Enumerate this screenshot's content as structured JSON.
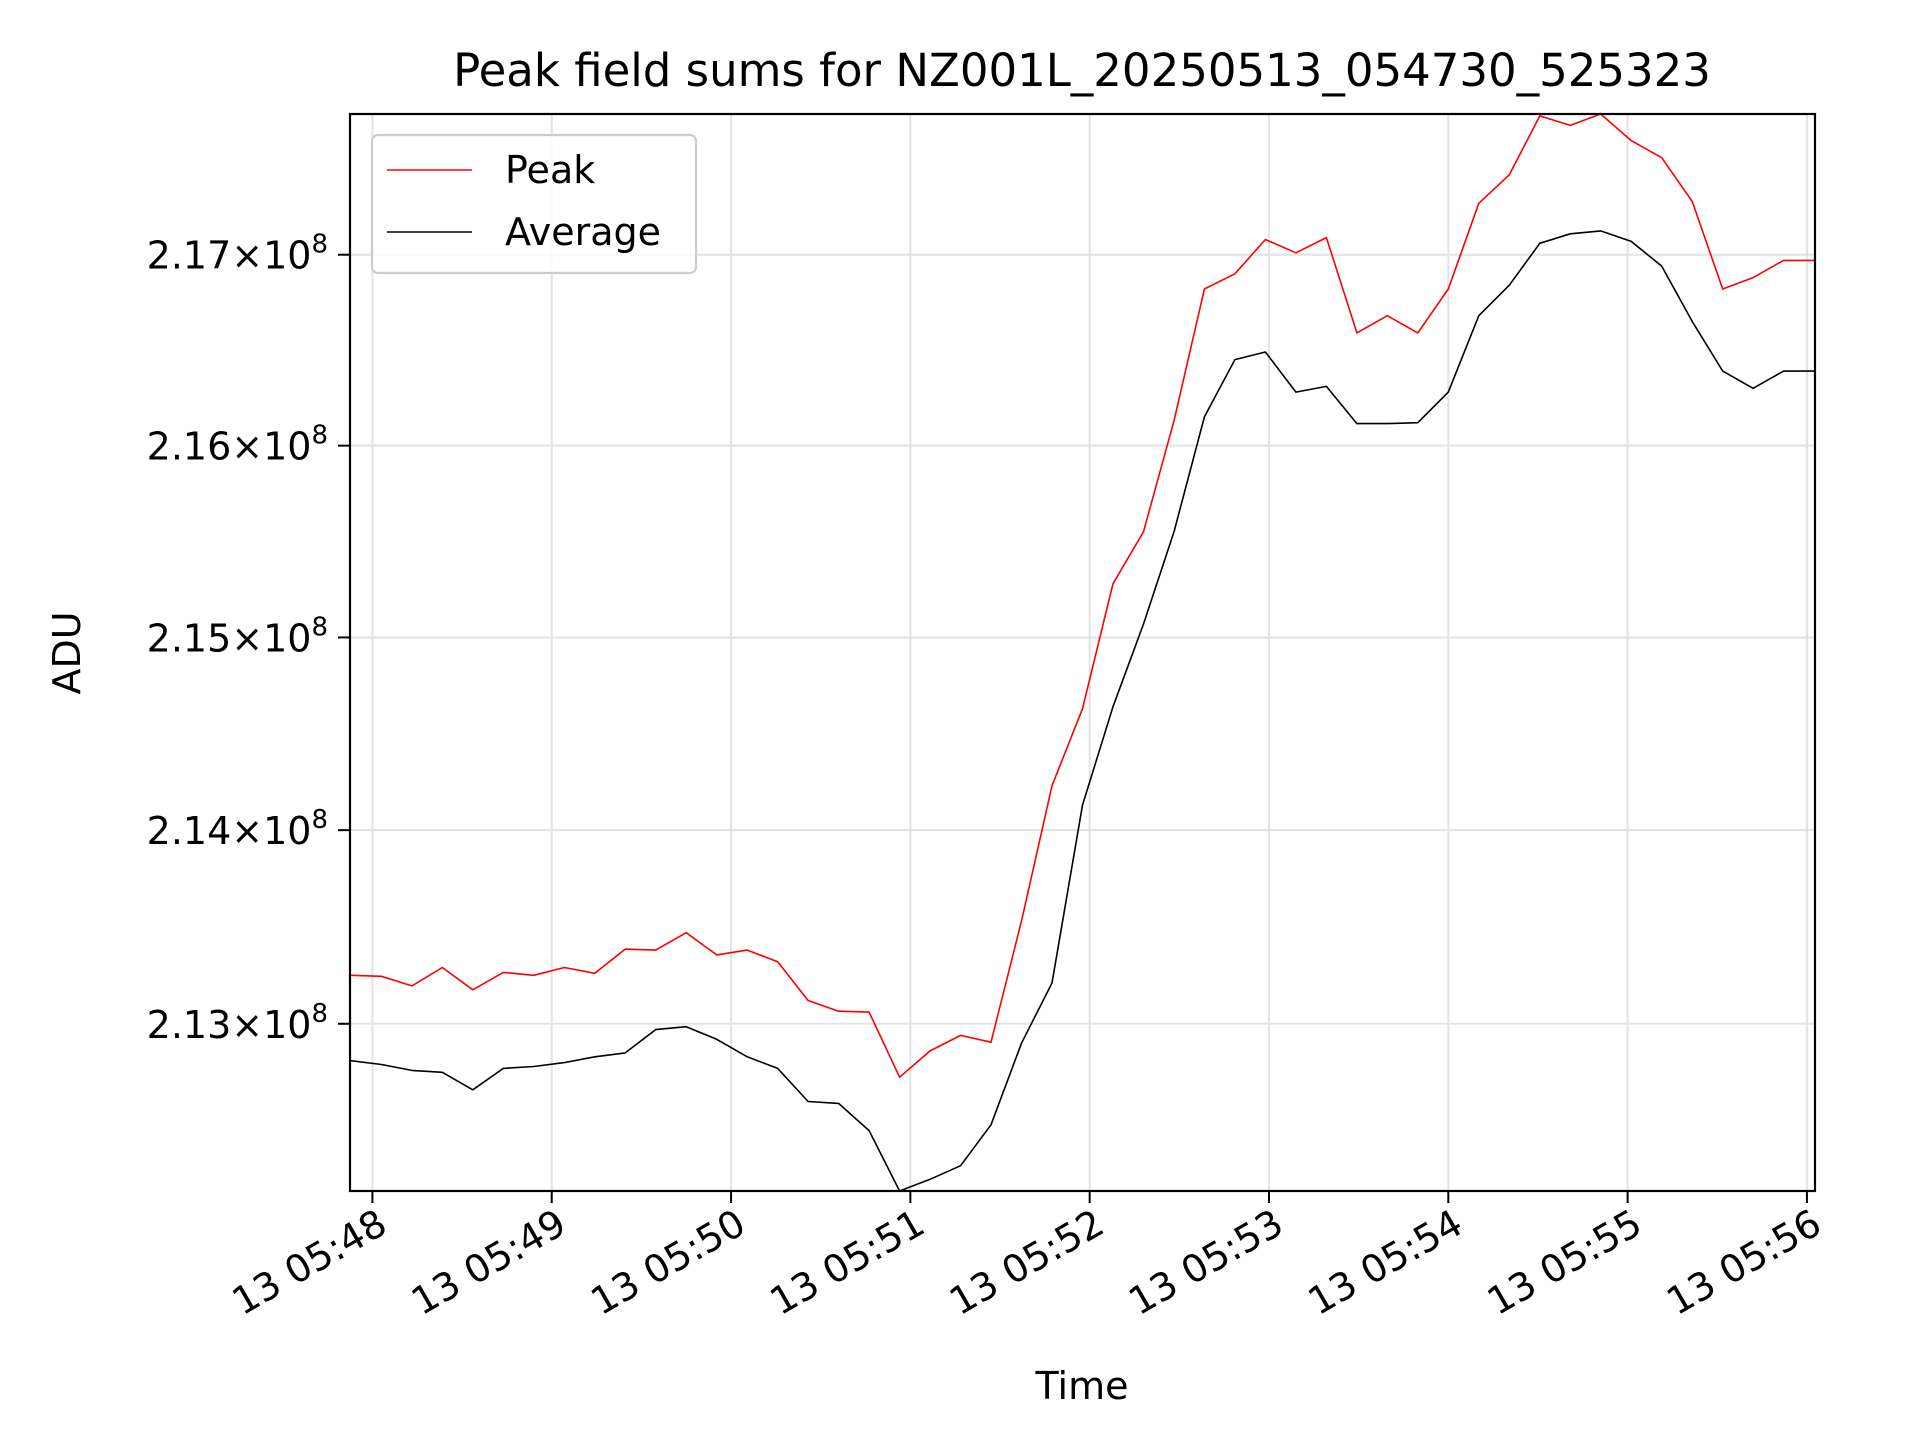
{
  "chart_data": {
    "type": "line",
    "title": "Peak field sums for NZ001L_20250513_054730_525323",
    "xlabel": "Time",
    "ylabel": "ADU",
    "x_tick_labels": [
      "13 05:48",
      "13 05:49",
      "13 05:50",
      "13 05:51",
      "13 05:52",
      "13 05:53",
      "13 05:54",
      "13 05:55",
      "13 05:56"
    ],
    "x_tick_minutes": [
      48,
      49,
      50,
      51,
      52,
      53,
      54,
      55,
      56
    ],
    "y_ticks": [
      {
        "value": 213000000,
        "mantissa": "2.13",
        "times": "×",
        "base": "10",
        "exponent": "8"
      },
      {
        "value": 214000000,
        "mantissa": "2.14",
        "times": "×",
        "base": "10",
        "exponent": "8"
      },
      {
        "value": 215000000,
        "mantissa": "2.15",
        "times": "×",
        "base": "10",
        "exponent": "8"
      },
      {
        "value": 216000000,
        "mantissa": "2.16",
        "times": "×",
        "base": "10",
        "exponent": "8"
      },
      {
        "value": 217000000,
        "mantissa": "2.17",
        "times": "×",
        "base": "10",
        "exponent": "8"
      }
    ],
    "yscale": "log",
    "xlim_minutes": [
      47.875,
      56.045
    ],
    "ylim": [
      212140000,
      217740000
    ],
    "grid": true,
    "legend_position": "top-left",
    "x_minutes": [
      47.88,
      48.05,
      48.22,
      48.39,
      48.56,
      48.73,
      48.9,
      49.07,
      49.24,
      49.41,
      49.58,
      49.75,
      49.92,
      50.09,
      50.26,
      50.43,
      50.6,
      50.77,
      50.94,
      51.11,
      51.28,
      51.45,
      51.62,
      51.79,
      51.96,
      52.13,
      52.3,
      52.47,
      52.64,
      52.81,
      52.98,
      53.15,
      53.32,
      53.49,
      53.66,
      53.83,
      54.0,
      54.17,
      54.34,
      54.51,
      54.68,
      54.85,
      55.02,
      55.19,
      55.36,
      55.53,
      55.7,
      55.87,
      56.04
    ],
    "series": [
      {
        "name": "Peak",
        "color": "#ff0000",
        "values": [
          213250000,
          213245000,
          213195000,
          213290000,
          213175000,
          213265000,
          213250000,
          213290000,
          213260000,
          213385000,
          213380000,
          213470000,
          213355000,
          213380000,
          213320000,
          213120000,
          213065000,
          213060000,
          212725000,
          212860000,
          212940000,
          212905000,
          213530000,
          214230000,
          214630000,
          215280000,
          215550000,
          216130000,
          216820000,
          216900000,
          217080000,
          217010000,
          217090000,
          216590000,
          216680000,
          216590000,
          216820000,
          217270000,
          217420000,
          217730000,
          217680000,
          217740000,
          217600000,
          217510000,
          217280000,
          216820000,
          216880000,
          216970000,
          216970000
        ]
      },
      {
        "name": "Average",
        "color": "#000000",
        "values": [
          212810000,
          212790000,
          212760000,
          212750000,
          212660000,
          212770000,
          212780000,
          212800000,
          212830000,
          212850000,
          212970000,
          212985000,
          212920000,
          212830000,
          212770000,
          212600000,
          212590000,
          212450000,
          212140000,
          212200000,
          212270000,
          212480000,
          212900000,
          213210000,
          214130000,
          214640000,
          215070000,
          215550000,
          216150000,
          216450000,
          216490000,
          216280000,
          216310000,
          216115000,
          216115000,
          216120000,
          216280000,
          216680000,
          216840000,
          217060000,
          217110000,
          217125000,
          217070000,
          216940000,
          216650000,
          216390000,
          216300000,
          216390000,
          216390000
        ]
      }
    ]
  }
}
